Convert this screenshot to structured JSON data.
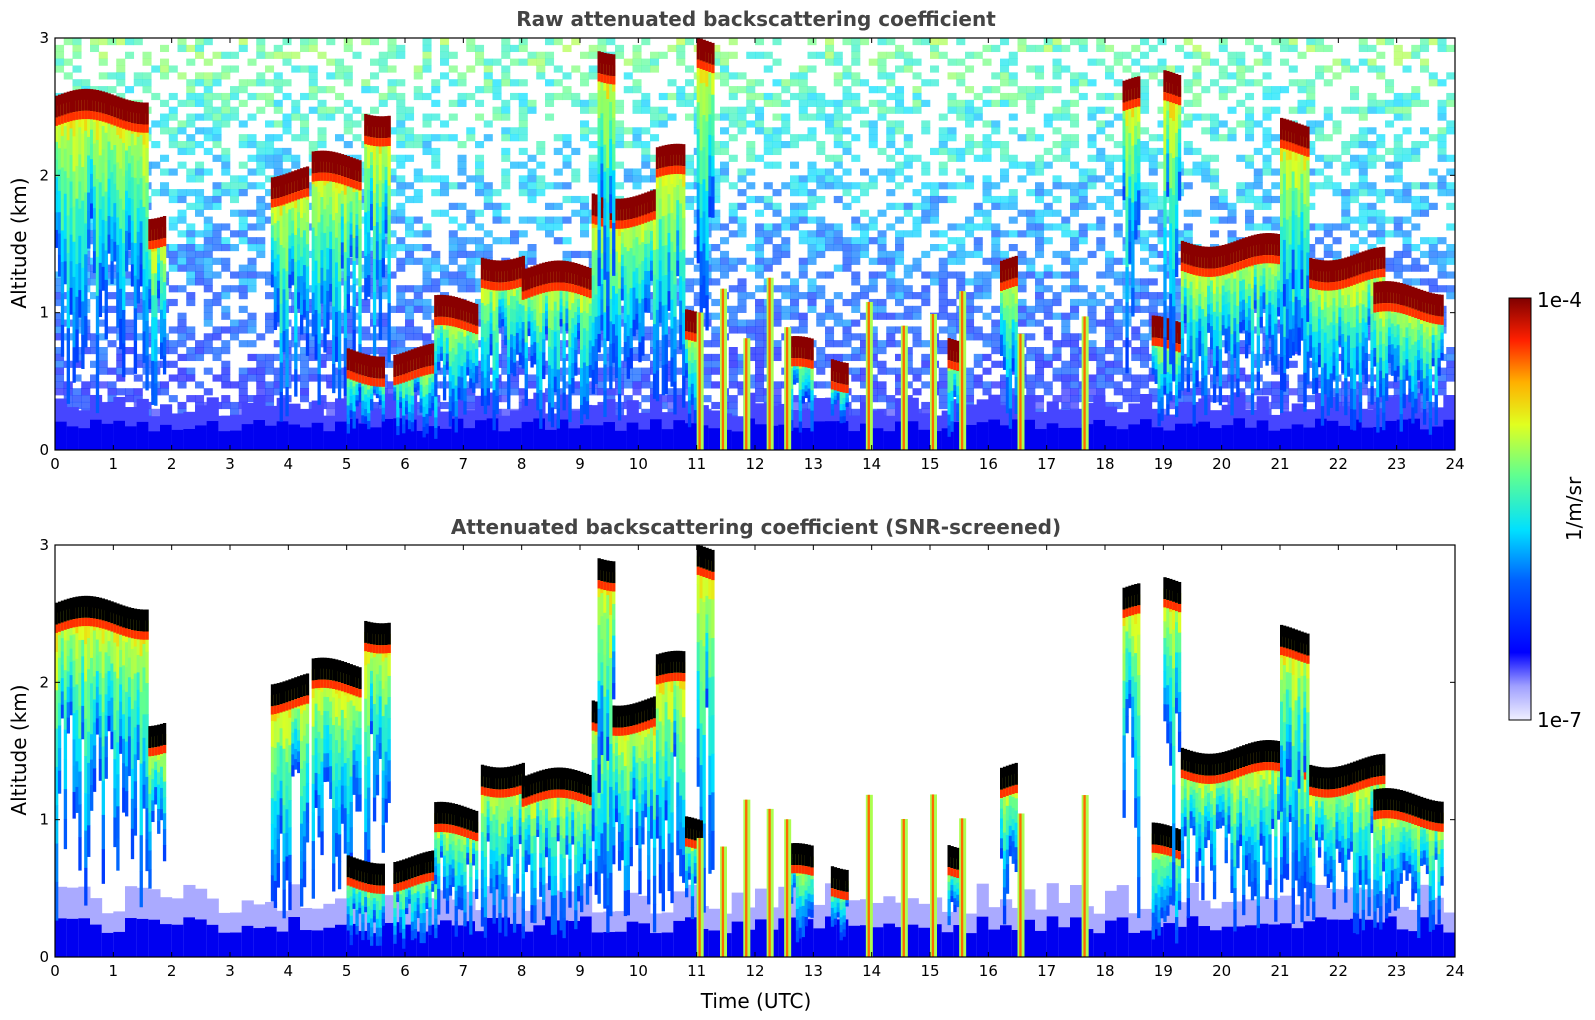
{
  "chart_data": [
    {
      "type": "heatmap",
      "title": "Raw attenuated backscattering coefficient",
      "xlabel": "",
      "ylabel": "Altitude (km)",
      "xlim": [
        0,
        24
      ],
      "ylim": [
        0,
        3
      ],
      "x_ticks": [
        "0",
        "1",
        "2",
        "3",
        "4",
        "5",
        "6",
        "7",
        "8",
        "9",
        "10",
        "11",
        "12",
        "13",
        "14",
        "15",
        "16",
        "17",
        "18",
        "19",
        "20",
        "21",
        "22",
        "23",
        "24"
      ],
      "y_ticks": [
        "0",
        "1",
        "2",
        "3"
      ],
      "cloud_layers": [
        {
          "t0": 0.0,
          "t1": 1.6,
          "alt": 2.5
        },
        {
          "t0": 1.6,
          "t1": 1.9,
          "alt": 1.65
        },
        {
          "t0": 3.7,
          "t1": 4.3,
          "alt": 1.95
        },
        {
          "t0": 4.4,
          "t1": 5.2,
          "alt": 2.05
        },
        {
          "t0": 5.3,
          "t1": 5.7,
          "alt": 2.4
        },
        {
          "t0": 5.0,
          "t1": 5.6,
          "alt": 0.65
        },
        {
          "t0": 5.8,
          "t1": 6.5,
          "alt": 0.65
        },
        {
          "t0": 6.5,
          "t1": 7.2,
          "alt": 1.0
        },
        {
          "t0": 7.3,
          "t1": 8.0,
          "alt": 1.35
        },
        {
          "t0": 8.0,
          "t1": 9.2,
          "alt": 1.25
        },
        {
          "t0": 9.2,
          "t1": 10.3,
          "alt": 1.8
        },
        {
          "t0": 10.3,
          "t1": 10.8,
          "alt": 2.1
        },
        {
          "t0": 9.3,
          "t1": 9.6,
          "alt": 2.85
        },
        {
          "t0": 11.0,
          "t1": 11.3,
          "alt": 2.9
        },
        {
          "t0": 10.8,
          "t1": 11.1,
          "alt": 0.9
        },
        {
          "t0": 12.6,
          "t1": 13.0,
          "alt": 0.7
        },
        {
          "t0": 13.3,
          "t1": 13.6,
          "alt": 0.6
        },
        {
          "t0": 15.3,
          "t1": 15.6,
          "alt": 0.75
        },
        {
          "t0": 16.2,
          "t1": 16.5,
          "alt": 1.3
        },
        {
          "t0": 18.3,
          "t1": 18.6,
          "alt": 2.6
        },
        {
          "t0": 18.8,
          "t1": 19.3,
          "alt": 0.85
        },
        {
          "t0": 19.0,
          "t1": 19.3,
          "alt": 2.65
        },
        {
          "t0": 19.3,
          "t1": 21.5,
          "alt": 1.45
        },
        {
          "t0": 21.0,
          "t1": 21.5,
          "alt": 2.3
        },
        {
          "t0": 21.5,
          "t1": 22.8,
          "alt": 1.35
        },
        {
          "t0": 22.6,
          "t1": 23.8,
          "alt": 1.1
        }
      ]
    },
    {
      "type": "heatmap",
      "title": "Attenuated backscattering coefficient (SNR-screened)",
      "xlabel": "Time (UTC)",
      "ylabel": "Altitude (km)",
      "xlim": [
        0,
        24
      ],
      "ylim": [
        0,
        3
      ],
      "x_ticks": [
        "0",
        "1",
        "2",
        "3",
        "4",
        "5",
        "6",
        "7",
        "8",
        "9",
        "10",
        "11",
        "12",
        "13",
        "14",
        "15",
        "16",
        "17",
        "18",
        "19",
        "20",
        "21",
        "22",
        "23",
        "24"
      ],
      "y_ticks": [
        "0",
        "1",
        "2",
        "3"
      ]
    }
  ],
  "colorbar": {
    "max_label": "1e-4",
    "min_label": "1e-7",
    "unit": "1/m/sr",
    "colormap": "jet"
  },
  "colors": {
    "title": "#444444",
    "background": "#ffffff",
    "cloud_saturated": "#7f0000",
    "boundary_layer": "#0000ff"
  }
}
